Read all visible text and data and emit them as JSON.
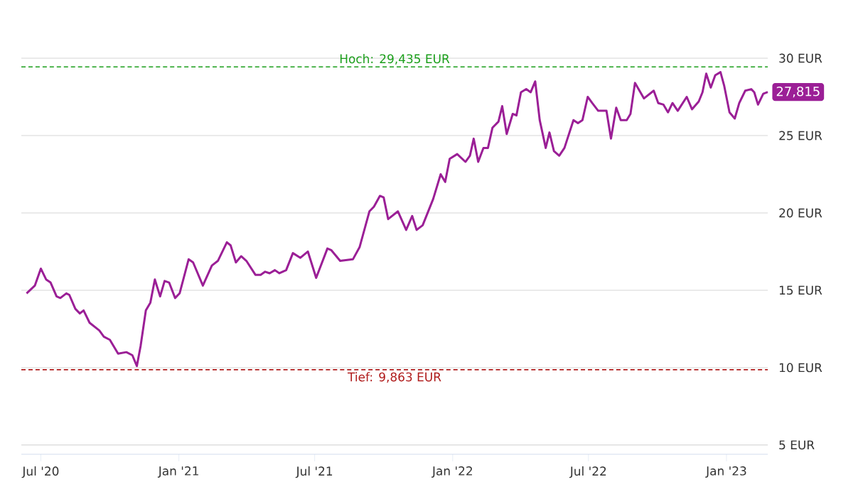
{
  "chart_data": {
    "type": "line",
    "color": "#9b1f96",
    "x": [
      "2020-06-12",
      "2020-06-23",
      "2020-07-01",
      "2020-07-08",
      "2020-07-14",
      "2020-07-22",
      "2020-07-27",
      "2020-08-04",
      "2020-08-08",
      "2020-08-16",
      "2020-08-22",
      "2020-08-27",
      "2020-09-04",
      "2020-09-17",
      "2020-09-23",
      "2020-10-01",
      "2020-10-12",
      "2020-10-23",
      "2020-10-31",
      "2020-11-06",
      "2020-11-11",
      "2020-11-18",
      "2020-11-24",
      "2020-11-30",
      "2020-12-07",
      "2020-12-13",
      "2020-12-19",
      "2020-12-27",
      "2021-01-02",
      "2021-01-14",
      "2021-01-20",
      "2021-02-02",
      "2021-02-14",
      "2021-02-22",
      "2021-03-06",
      "2021-03-11",
      "2021-03-18",
      "2021-03-25",
      "2021-04-01",
      "2021-04-13",
      "2021-04-20",
      "2021-04-26",
      "2021-05-02",
      "2021-05-09",
      "2021-05-15",
      "2021-05-24",
      "2021-06-02",
      "2021-06-12",
      "2021-06-22",
      "2021-07-03",
      "2021-07-18",
      "2021-07-23",
      "2021-08-04",
      "2021-08-21",
      "2021-08-30",
      "2021-09-12",
      "2021-09-18",
      "2021-09-26",
      "2021-10-01",
      "2021-10-07",
      "2021-10-20",
      "2021-10-31",
      "2021-11-08",
      "2021-11-14",
      "2021-11-22",
      "2021-12-06",
      "2021-12-16",
      "2021-12-22",
      "2021-12-28",
      "2022-01-07",
      "2022-01-18",
      "2022-01-24",
      "2022-01-29",
      "2022-02-04",
      "2022-02-11",
      "2022-02-17",
      "2022-02-23",
      "2022-03-03",
      "2022-03-08",
      "2022-03-14",
      "2022-03-22",
      "2022-03-27",
      "2022-04-02",
      "2022-04-09",
      "2022-04-15",
      "2022-04-21",
      "2022-04-27",
      "2022-05-05",
      "2022-05-10",
      "2022-05-16",
      "2022-05-23",
      "2022-05-30",
      "2022-06-11",
      "2022-06-17",
      "2022-06-23",
      "2022-06-30",
      "2022-07-06",
      "2022-07-14",
      "2022-07-25",
      "2022-07-31",
      "2022-08-07",
      "2022-08-13",
      "2022-08-21",
      "2022-08-26",
      "2022-09-01",
      "2022-09-13",
      "2022-09-26",
      "2022-10-02",
      "2022-10-09",
      "2022-10-15",
      "2022-10-21",
      "2022-10-28",
      "2022-11-09",
      "2022-11-16",
      "2022-11-25",
      "2022-11-30",
      "2022-12-05",
      "2022-12-11",
      "2022-12-17",
      "2022-12-24",
      "2022-12-29",
      "2023-01-05",
      "2023-01-12",
      "2023-01-18",
      "2023-01-26",
      "2023-02-03",
      "2023-02-07",
      "2023-02-12",
      "2023-02-19",
      "2023-02-25"
    ],
    "values": [
      14.8,
      15.3,
      16.4,
      15.7,
      15.5,
      14.6,
      14.5,
      14.8,
      14.7,
      13.8,
      13.5,
      13.7,
      12.9,
      12.4,
      12.0,
      11.8,
      10.9,
      11.0,
      10.8,
      10.1,
      11.4,
      13.7,
      14.2,
      15.7,
      14.6,
      15.6,
      15.5,
      14.5,
      14.8,
      17.0,
      16.8,
      15.3,
      16.6,
      16.9,
      18.1,
      17.9,
      16.8,
      17.2,
      16.9,
      16.0,
      16.0,
      16.2,
      16.1,
      16.3,
      16.1,
      16.3,
      17.4,
      17.1,
      17.5,
      15.8,
      17.7,
      17.6,
      16.9,
      17.0,
      17.8,
      20.1,
      20.4,
      21.1,
      21.0,
      19.6,
      20.1,
      18.9,
      19.8,
      18.9,
      19.2,
      20.9,
      22.5,
      22.0,
      23.5,
      23.8,
      23.3,
      23.7,
      24.8,
      23.3,
      24.2,
      24.2,
      25.5,
      25.9,
      26.9,
      25.1,
      26.4,
      26.3,
      27.8,
      28.0,
      27.8,
      28.5,
      26.0,
      24.2,
      25.2,
      24.0,
      23.7,
      24.2,
      26.0,
      25.8,
      26.0,
      27.5,
      27.1,
      26.6,
      26.6,
      24.8,
      26.8,
      26.0,
      26.0,
      26.4,
      28.4,
      27.4,
      27.9,
      27.1,
      27.0,
      26.5,
      27.1,
      26.6,
      27.5,
      26.7,
      27.2,
      27.8,
      29.0,
      28.1,
      28.9,
      29.1,
      28.2,
      26.5,
      26.1,
      27.1,
      27.9,
      28.0,
      27.8,
      27.0,
      27.7,
      27.815
    ],
    "xlim": [
      "2020-06-05",
      "2023-02-25"
    ],
    "xticks": [
      {
        "value": "2020-07-01",
        "label": "Jul '20"
      },
      {
        "value": "2021-01-01",
        "label": "Jan '21"
      },
      {
        "value": "2021-07-01",
        "label": "Jul '21"
      },
      {
        "value": "2022-01-01",
        "label": "Jan '22"
      },
      {
        "value": "2022-07-01",
        "label": "Jul '22"
      },
      {
        "value": "2023-01-01",
        "label": "Jan '23"
      }
    ],
    "ylim": [
      4.4,
      30
    ],
    "yticks": [
      {
        "value": 5,
        "label": "5 EUR"
      },
      {
        "value": 10,
        "label": "10 EUR"
      },
      {
        "value": 15,
        "label": "15 EUR"
      },
      {
        "value": 20,
        "label": "20 EUR"
      },
      {
        "value": 25,
        "label": "25 EUR"
      },
      {
        "value": 30,
        "label": "30 EUR"
      }
    ],
    "grid": "y",
    "ref_lines": [
      {
        "axis": "y",
        "value": 29.435,
        "label": "Hoch: 29,435 EUR",
        "color": "#1a9e1a",
        "line_style": "dashed"
      },
      {
        "axis": "y",
        "value": 9.863,
        "label": "Tief: 9,863 EUR",
        "color": "#b01c1c",
        "line_style": "dashed"
      }
    ],
    "annotations": [
      {
        "text": "27,815",
        "x": "2023-02-25",
        "y": 27.815
      }
    ]
  }
}
